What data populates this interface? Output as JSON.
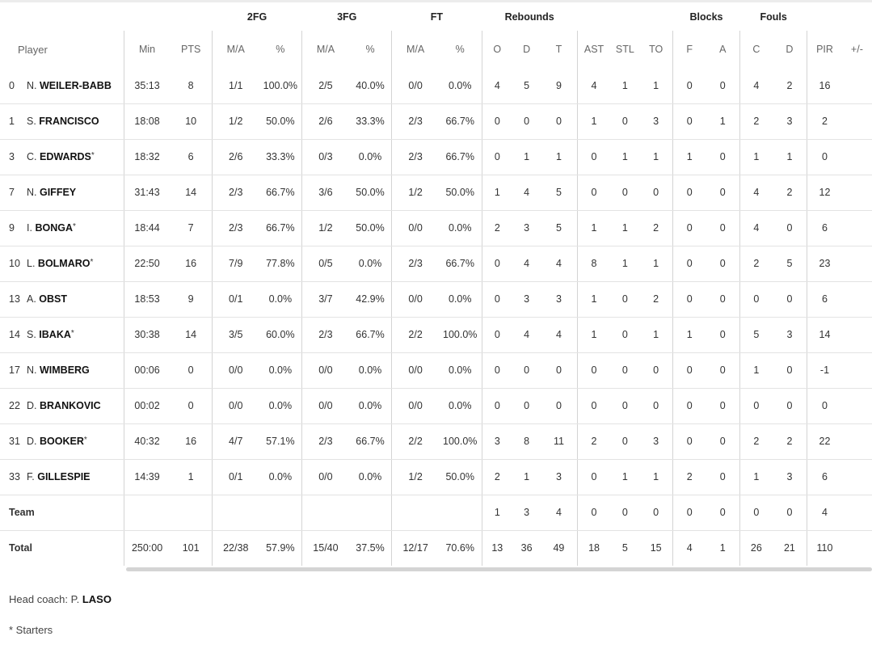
{
  "groups": {
    "fg2": "2FG",
    "fg3": "3FG",
    "ft": "FT",
    "reb": "Rebounds",
    "blocks": "Blocks",
    "fouls": "Fouls"
  },
  "columns": {
    "player": "Player",
    "min": "Min",
    "pts": "PTS",
    "fg2_ma": "M/A",
    "fg2_pct": "%",
    "fg3_ma": "M/A",
    "fg3_pct": "%",
    "ft_ma": "M/A",
    "ft_pct": "%",
    "reb_o": "O",
    "reb_d": "D",
    "reb_t": "T",
    "ast": "AST",
    "stl": "STL",
    "to": "TO",
    "blk_f": "F",
    "blk_a": "A",
    "foul_c": "C",
    "foul_d": "D",
    "pir": "PIR",
    "pm": "+/-"
  },
  "players": [
    {
      "num": "0",
      "init": "N.",
      "surname": "WEILER-BABB",
      "star": "",
      "min": "35:13",
      "pts": "8",
      "fg2_ma": "1/1",
      "fg2_pct": "100.0%",
      "fg3_ma": "2/5",
      "fg3_pct": "40.0%",
      "ft_ma": "0/0",
      "ft_pct": "0.0%",
      "reb_o": "4",
      "reb_d": "5",
      "reb_t": "9",
      "ast": "4",
      "stl": "1",
      "to": "1",
      "blk_f": "0",
      "blk_a": "0",
      "foul_c": "4",
      "foul_d": "2",
      "pir": "16",
      "pm": ""
    },
    {
      "num": "1",
      "init": "S.",
      "surname": "FRANCISCO",
      "star": "",
      "min": "18:08",
      "pts": "10",
      "fg2_ma": "1/2",
      "fg2_pct": "50.0%",
      "fg3_ma": "2/6",
      "fg3_pct": "33.3%",
      "ft_ma": "2/3",
      "ft_pct": "66.7%",
      "reb_o": "0",
      "reb_d": "0",
      "reb_t": "0",
      "ast": "1",
      "stl": "0",
      "to": "3",
      "blk_f": "0",
      "blk_a": "1",
      "foul_c": "2",
      "foul_d": "3",
      "pir": "2",
      "pm": ""
    },
    {
      "num": "3",
      "init": "C.",
      "surname": "EDWARDS",
      "star": "*",
      "min": "18:32",
      "pts": "6",
      "fg2_ma": "2/6",
      "fg2_pct": "33.3%",
      "fg3_ma": "0/3",
      "fg3_pct": "0.0%",
      "ft_ma": "2/3",
      "ft_pct": "66.7%",
      "reb_o": "0",
      "reb_d": "1",
      "reb_t": "1",
      "ast": "0",
      "stl": "1",
      "to": "1",
      "blk_f": "1",
      "blk_a": "0",
      "foul_c": "1",
      "foul_d": "1",
      "pir": "0",
      "pm": ""
    },
    {
      "num": "7",
      "init": "N.",
      "surname": "GIFFEY",
      "star": "",
      "min": "31:43",
      "pts": "14",
      "fg2_ma": "2/3",
      "fg2_pct": "66.7%",
      "fg3_ma": "3/6",
      "fg3_pct": "50.0%",
      "ft_ma": "1/2",
      "ft_pct": "50.0%",
      "reb_o": "1",
      "reb_d": "4",
      "reb_t": "5",
      "ast": "0",
      "stl": "0",
      "to": "0",
      "blk_f": "0",
      "blk_a": "0",
      "foul_c": "4",
      "foul_d": "2",
      "pir": "12",
      "pm": ""
    },
    {
      "num": "9",
      "init": "I.",
      "surname": "BONGA",
      "star": "*",
      "min": "18:44",
      "pts": "7",
      "fg2_ma": "2/3",
      "fg2_pct": "66.7%",
      "fg3_ma": "1/2",
      "fg3_pct": "50.0%",
      "ft_ma": "0/0",
      "ft_pct": "0.0%",
      "reb_o": "2",
      "reb_d": "3",
      "reb_t": "5",
      "ast": "1",
      "stl": "1",
      "to": "2",
      "blk_f": "0",
      "blk_a": "0",
      "foul_c": "4",
      "foul_d": "0",
      "pir": "6",
      "pm": ""
    },
    {
      "num": "10",
      "init": "L.",
      "surname": "BOLMARO",
      "star": "*",
      "min": "22:50",
      "pts": "16",
      "fg2_ma": "7/9",
      "fg2_pct": "77.8%",
      "fg3_ma": "0/5",
      "fg3_pct": "0.0%",
      "ft_ma": "2/3",
      "ft_pct": "66.7%",
      "reb_o": "0",
      "reb_d": "4",
      "reb_t": "4",
      "ast": "8",
      "stl": "1",
      "to": "1",
      "blk_f": "0",
      "blk_a": "0",
      "foul_c": "2",
      "foul_d": "5",
      "pir": "23",
      "pm": ""
    },
    {
      "num": "13",
      "init": "A.",
      "surname": "OBST",
      "star": "",
      "min": "18:53",
      "pts": "9",
      "fg2_ma": "0/1",
      "fg2_pct": "0.0%",
      "fg3_ma": "3/7",
      "fg3_pct": "42.9%",
      "ft_ma": "0/0",
      "ft_pct": "0.0%",
      "reb_o": "0",
      "reb_d": "3",
      "reb_t": "3",
      "ast": "1",
      "stl": "0",
      "to": "2",
      "blk_f": "0",
      "blk_a": "0",
      "foul_c": "0",
      "foul_d": "0",
      "pir": "6",
      "pm": ""
    },
    {
      "num": "14",
      "init": "S.",
      "surname": "IBAKA",
      "star": "*",
      "min": "30:38",
      "pts": "14",
      "fg2_ma": "3/5",
      "fg2_pct": "60.0%",
      "fg3_ma": "2/3",
      "fg3_pct": "66.7%",
      "ft_ma": "2/2",
      "ft_pct": "100.0%",
      "reb_o": "0",
      "reb_d": "4",
      "reb_t": "4",
      "ast": "1",
      "stl": "0",
      "to": "1",
      "blk_f": "1",
      "blk_a": "0",
      "foul_c": "5",
      "foul_d": "3",
      "pir": "14",
      "pm": ""
    },
    {
      "num": "17",
      "init": "N.",
      "surname": "WIMBERG",
      "star": "",
      "min": "00:06",
      "pts": "0",
      "fg2_ma": "0/0",
      "fg2_pct": "0.0%",
      "fg3_ma": "0/0",
      "fg3_pct": "0.0%",
      "ft_ma": "0/0",
      "ft_pct": "0.0%",
      "reb_o": "0",
      "reb_d": "0",
      "reb_t": "0",
      "ast": "0",
      "stl": "0",
      "to": "0",
      "blk_f": "0",
      "blk_a": "0",
      "foul_c": "1",
      "foul_d": "0",
      "pir": "-1",
      "pm": ""
    },
    {
      "num": "22",
      "init": "D.",
      "surname": "BRANKOVIC",
      "star": "",
      "min": "00:02",
      "pts": "0",
      "fg2_ma": "0/0",
      "fg2_pct": "0.0%",
      "fg3_ma": "0/0",
      "fg3_pct": "0.0%",
      "ft_ma": "0/0",
      "ft_pct": "0.0%",
      "reb_o": "0",
      "reb_d": "0",
      "reb_t": "0",
      "ast": "0",
      "stl": "0",
      "to": "0",
      "blk_f": "0",
      "blk_a": "0",
      "foul_c": "0",
      "foul_d": "0",
      "pir": "0",
      "pm": ""
    },
    {
      "num": "31",
      "init": "D.",
      "surname": "BOOKER",
      "star": "*",
      "min": "40:32",
      "pts": "16",
      "fg2_ma": "4/7",
      "fg2_pct": "57.1%",
      "fg3_ma": "2/3",
      "fg3_pct": "66.7%",
      "ft_ma": "2/2",
      "ft_pct": "100.0%",
      "reb_o": "3",
      "reb_d": "8",
      "reb_t": "11",
      "ast": "2",
      "stl": "0",
      "to": "3",
      "blk_f": "0",
      "blk_a": "0",
      "foul_c": "2",
      "foul_d": "2",
      "pir": "22",
      "pm": ""
    },
    {
      "num": "33",
      "init": "F.",
      "surname": "GILLESPIE",
      "star": "",
      "min": "14:39",
      "pts": "1",
      "fg2_ma": "0/1",
      "fg2_pct": "0.0%",
      "fg3_ma": "0/0",
      "fg3_pct": "0.0%",
      "ft_ma": "1/2",
      "ft_pct": "50.0%",
      "reb_o": "2",
      "reb_d": "1",
      "reb_t": "3",
      "ast": "0",
      "stl": "1",
      "to": "1",
      "blk_f": "2",
      "blk_a": "0",
      "foul_c": "1",
      "foul_d": "3",
      "pir": "6",
      "pm": ""
    }
  ],
  "team": {
    "label": "Team",
    "min": "",
    "pts": "",
    "fg2_ma": "",
    "fg2_pct": "",
    "fg3_ma": "",
    "fg3_pct": "",
    "ft_ma": "",
    "ft_pct": "",
    "reb_o": "1",
    "reb_d": "3",
    "reb_t": "4",
    "ast": "0",
    "stl": "0",
    "to": "0",
    "blk_f": "0",
    "blk_a": "0",
    "foul_c": "0",
    "foul_d": "0",
    "pir": "4",
    "pm": ""
  },
  "total": {
    "label": "Total",
    "min": "250:00",
    "pts": "101",
    "fg2_ma": "22/38",
    "fg2_pct": "57.9%",
    "fg3_ma": "15/40",
    "fg3_pct": "37.5%",
    "ft_ma": "12/17",
    "ft_pct": "70.6%",
    "reb_o": "13",
    "reb_d": "36",
    "reb_t": "49",
    "ast": "18",
    "stl": "5",
    "to": "15",
    "blk_f": "4",
    "blk_a": "1",
    "foul_c": "26",
    "foul_d": "21",
    "pir": "110",
    "pm": ""
  },
  "footer": {
    "coach_label": "Head coach: P.",
    "coach_name": "LASO",
    "starters_note": "* Starters"
  }
}
